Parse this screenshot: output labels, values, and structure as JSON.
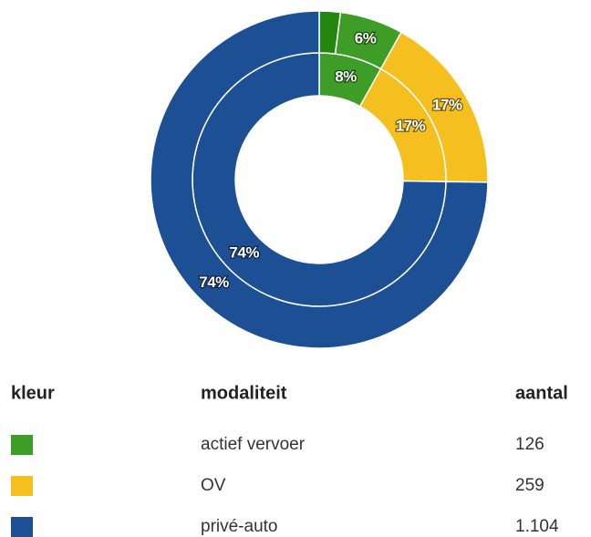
{
  "chart_data": {
    "type": "donut",
    "series": [
      {
        "ring": "inner",
        "colors": [
          "#3d9d26",
          "#f5c01f",
          "#1c4f93"
        ],
        "values": [
          8,
          17,
          74
        ],
        "value_labels": [
          "8%",
          "17%",
          "74%"
        ]
      },
      {
        "ring": "outer",
        "colors": [
          "#23870f",
          "#3d9d26",
          "#f5c01f",
          "#1c4f93"
        ],
        "values": [
          2,
          6,
          17,
          74
        ],
        "value_labels": [
          null,
          "6%",
          "17%",
          "74%"
        ]
      }
    ]
  },
  "table": {
    "headers": [
      "kleur",
      "modaliteit",
      "aantal"
    ],
    "rows": [
      {
        "color": "#3d9d26",
        "modaliteit": "actief vervoer",
        "aantal": "126"
      },
      {
        "color": "#f5c01f",
        "modaliteit": "OV",
        "aantal": "259"
      },
      {
        "color": "#1c4f93",
        "modaliteit": "privé-auto",
        "aantal": "1.104"
      }
    ]
  }
}
